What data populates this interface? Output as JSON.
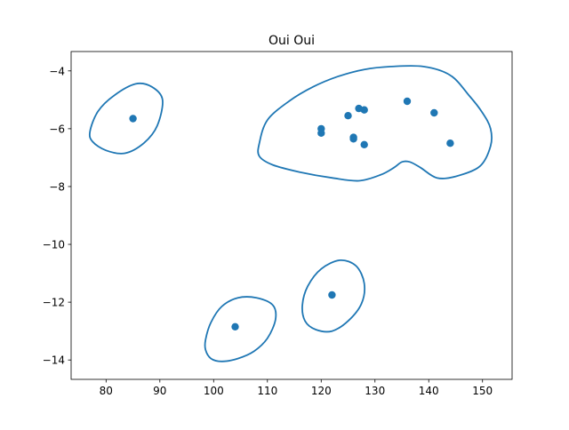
{
  "chart_data": {
    "type": "scatter",
    "title": "Oui Oui",
    "xlabel": "",
    "ylabel": "",
    "xlim": [
      73.5,
      155.5
    ],
    "ylim": [
      -14.67,
      -3.33
    ],
    "x_ticks": [
      80,
      90,
      100,
      110,
      120,
      130,
      140,
      150
    ],
    "y_ticks": [
      -4,
      -6,
      -8,
      -10,
      -12,
      -14
    ],
    "grid": false,
    "colors": {
      "series": "#1f77b4",
      "axes": "#000000",
      "background": "#ffffff"
    },
    "points": [
      {
        "x": 85.0,
        "y": -5.65
      },
      {
        "x": 104.0,
        "y": -12.85
      },
      {
        "x": 122.0,
        "y": -11.75
      },
      {
        "x": 120.0,
        "y": -6.0
      },
      {
        "x": 120.0,
        "y": -6.15
      },
      {
        "x": 125.0,
        "y": -5.55
      },
      {
        "x": 126.0,
        "y": -6.3
      },
      {
        "x": 126.0,
        "y": -6.35
      },
      {
        "x": 127.0,
        "y": -5.3
      },
      {
        "x": 128.0,
        "y": -5.35
      },
      {
        "x": 128.0,
        "y": -6.55
      },
      {
        "x": 136.0,
        "y": -5.05
      },
      {
        "x": 141.0,
        "y": -5.45
      },
      {
        "x": 144.0,
        "y": -6.5
      }
    ],
    "contours": [
      [
        [
          77.0,
          -6.1
        ],
        [
          78.5,
          -5.4
        ],
        [
          81.5,
          -4.85
        ],
        [
          85.5,
          -4.45
        ],
        [
          88.5,
          -4.55
        ],
        [
          90.5,
          -5.0
        ],
        [
          89.5,
          -5.9
        ],
        [
          87.0,
          -6.5
        ],
        [
          83.5,
          -6.85
        ],
        [
          80.0,
          -6.75
        ],
        [
          77.5,
          -6.45
        ],
        [
          77.0,
          -6.1
        ]
      ],
      [
        [
          98.5,
          -13.3
        ],
        [
          99.5,
          -12.7
        ],
        [
          101.5,
          -12.15
        ],
        [
          104.5,
          -11.85
        ],
        [
          108.0,
          -11.85
        ],
        [
          111.0,
          -12.1
        ],
        [
          111.5,
          -12.6
        ],
        [
          110.0,
          -13.25
        ],
        [
          107.5,
          -13.7
        ],
        [
          104.5,
          -13.95
        ],
        [
          101.5,
          -14.05
        ],
        [
          99.5,
          -13.95
        ],
        [
          98.5,
          -13.65
        ],
        [
          98.5,
          -13.3
        ]
      ],
      [
        [
          116.5,
          -12.1
        ],
        [
          117.5,
          -11.45
        ],
        [
          120.0,
          -10.85
        ],
        [
          123.5,
          -10.55
        ],
        [
          126.5,
          -10.75
        ],
        [
          128.0,
          -11.35
        ],
        [
          127.5,
          -12.05
        ],
        [
          125.0,
          -12.65
        ],
        [
          122.0,
          -13.0
        ],
        [
          119.0,
          -12.95
        ],
        [
          117.0,
          -12.65
        ],
        [
          116.5,
          -12.1
        ]
      ],
      [
        [
          108.5,
          -6.5
        ],
        [
          110.0,
          -5.7
        ],
        [
          114.0,
          -5.05
        ],
        [
          118.5,
          -4.55
        ],
        [
          123.0,
          -4.2
        ],
        [
          128.0,
          -3.95
        ],
        [
          133.0,
          -3.85
        ],
        [
          139.0,
          -3.85
        ],
        [
          144.0,
          -4.15
        ],
        [
          147.5,
          -4.85
        ],
        [
          150.0,
          -5.45
        ],
        [
          151.5,
          -6.0
        ],
        [
          151.5,
          -6.6
        ],
        [
          149.5,
          -7.3
        ],
        [
          145.0,
          -7.65
        ],
        [
          141.5,
          -7.7
        ],
        [
          138.5,
          -7.35
        ],
        [
          136.5,
          -7.15
        ],
        [
          135.0,
          -7.15
        ],
        [
          133.5,
          -7.35
        ],
        [
          131.0,
          -7.6
        ],
        [
          127.0,
          -7.8
        ],
        [
          122.0,
          -7.7
        ],
        [
          116.0,
          -7.5
        ],
        [
          111.0,
          -7.25
        ],
        [
          108.5,
          -6.95
        ],
        [
          108.5,
          -6.5
        ]
      ]
    ]
  }
}
